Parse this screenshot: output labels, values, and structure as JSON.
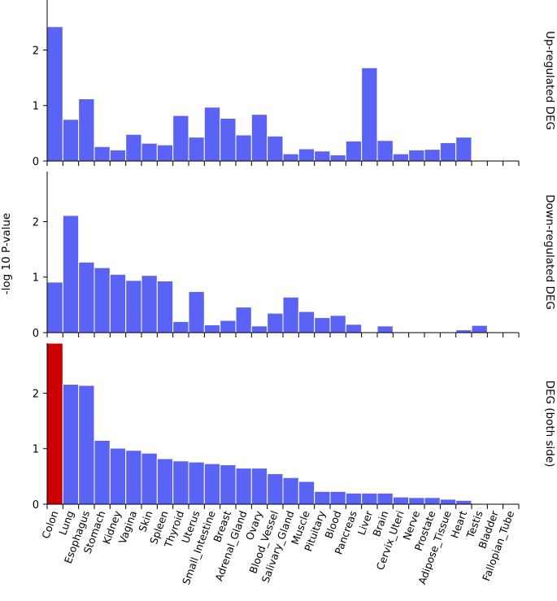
{
  "chart_data": {
    "type": "bar",
    "ylabel": "-log 10 P-value",
    "categories": [
      "Colon",
      "Lung",
      "Esophagus",
      "Stomach",
      "Kidney",
      "Vagina",
      "Skin",
      "Spleen",
      "Thyroid",
      "Uterus",
      "Small_Intestine",
      "Breast",
      "Adrenal_Gland",
      "Ovary",
      "Blood_Vessel",
      "Salivary_Gland",
      "Muscle",
      "Pituitary",
      "Blood",
      "Pancreas",
      "Liver",
      "Brain",
      "Cervix_Uteri",
      "Nerve",
      "Prostate",
      "Adipose_Tissue",
      "Heart",
      "Testis",
      "Bladder",
      "Fallopian_Tube"
    ],
    "colors": {
      "bar": "#5b63f5",
      "highlight": "#cc0000"
    },
    "panels": [
      {
        "title": "Up-regulated DEG",
        "ylim": [
          0,
          2.9
        ],
        "yticks": [
          0,
          1,
          2
        ],
        "values": [
          2.42,
          0.75,
          1.12,
          0.26,
          0.2,
          0.48,
          0.32,
          0.29,
          0.82,
          0.43,
          0.97,
          0.77,
          0.47,
          0.84,
          0.45,
          0.13,
          0.22,
          0.18,
          0.11,
          0.36,
          1.68,
          0.37,
          0.13,
          0.2,
          0.21,
          0.33,
          0.43,
          0,
          0,
          0
        ]
      },
      {
        "title": "Down-regulated DEG",
        "ylim": [
          0,
          2.9
        ],
        "yticks": [
          0,
          1,
          2
        ],
        "values": [
          0.91,
          2.11,
          1.27,
          1.17,
          1.05,
          0.94,
          1.03,
          0.93,
          0.2,
          0.74,
          0.14,
          0.22,
          0.46,
          0.12,
          0.35,
          0.64,
          0.38,
          0.27,
          0.31,
          0.15,
          0,
          0.12,
          0,
          0,
          0,
          0,
          0.05,
          0.13,
          0,
          0
        ]
      },
      {
        "title": "DEG (both side)",
        "ylim": [
          0,
          2.9
        ],
        "yticks": [
          0,
          1,
          2
        ],
        "highlight_index": 0,
        "values": [
          2.9,
          2.16,
          2.14,
          1.15,
          1.01,
          0.97,
          0.92,
          0.82,
          0.78,
          0.76,
          0.73,
          0.71,
          0.65,
          0.65,
          0.55,
          0.48,
          0.41,
          0.23,
          0.23,
          0.2,
          0.2,
          0.2,
          0.13,
          0.12,
          0.12,
          0.09,
          0.07,
          0,
          0,
          0
        ]
      }
    ]
  }
}
